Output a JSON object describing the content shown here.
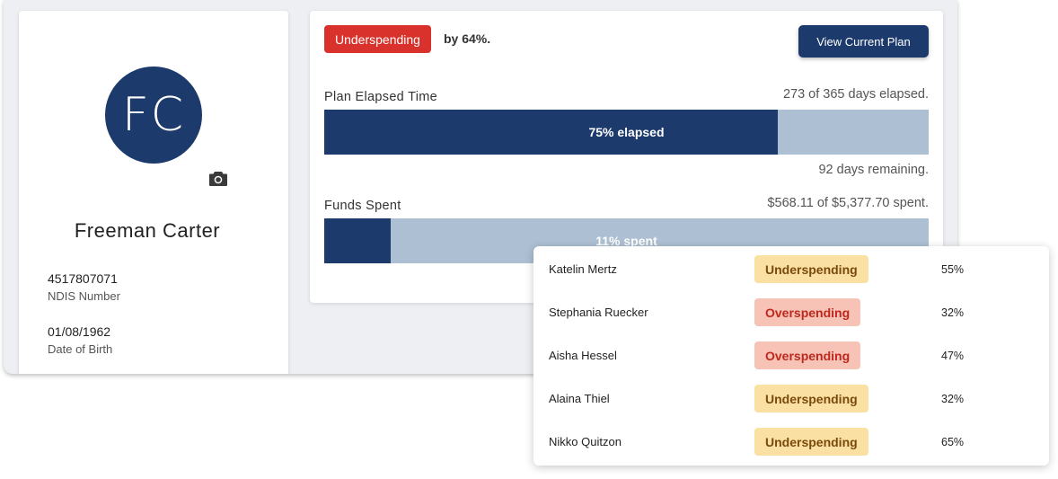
{
  "profile": {
    "initials": "FC",
    "name": "Freeman Carter",
    "ndis_number": "4517807071",
    "ndis_label": "NDIS Number",
    "dob": "01/08/1962",
    "dob_label": "Date of Birth",
    "camera_icon": "camera-icon",
    "avatar_color": "#1c3a6b"
  },
  "plan": {
    "status_badge": "Underspending",
    "status_suffix": "by 64%.",
    "status_color": "#d9312b",
    "view_button": "View Current Plan",
    "elapsed": {
      "title": "Plan Elapsed Time",
      "summary": "273 of 365 days elapsed.",
      "bar_label": "75% elapsed",
      "fraction": 0.75,
      "remaining": "92 days remaining."
    },
    "funds": {
      "title": "Funds Spent",
      "summary": "$568.11 of $5,377.70 spent.",
      "bar_label": "11% spent",
      "fraction": 0.11
    }
  },
  "participants": [
    {
      "name": "Katelin Mertz",
      "status": "Underspending",
      "type": "under",
      "percent": "55%"
    },
    {
      "name": "Stephania Ruecker",
      "status": "Overspending",
      "type": "over",
      "percent": "32%"
    },
    {
      "name": "Aisha Hessel",
      "status": "Overspending",
      "type": "over",
      "percent": "47%"
    },
    {
      "name": "Alaina Thiel",
      "status": "Underspending",
      "type": "under",
      "percent": "32%"
    },
    {
      "name": "Nikko Quitzon",
      "status": "Underspending",
      "type": "under",
      "percent": "65%"
    }
  ]
}
